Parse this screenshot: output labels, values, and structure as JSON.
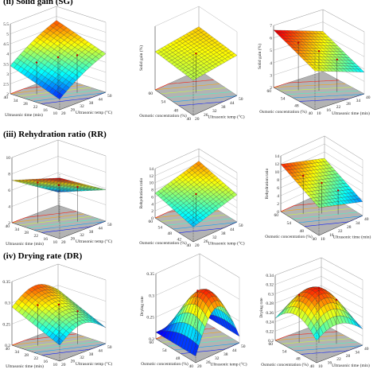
{
  "sections": [
    {
      "id": "sg",
      "title": "(ii) Solid gain (SG)"
    },
    {
      "id": "rr",
      "title": "(iii) Rehydration ratio (RR)"
    },
    {
      "id": "dr",
      "title": "(iv) Drying rate (DR)"
    }
  ],
  "chart_data": [
    {
      "type": "surface",
      "panel": "sg-1",
      "zlabel": "Solid gain (%)",
      "xlabel": "Ultrasonic temp (°C)",
      "ylabel": "Ultrasonic time (min)",
      "zticks": [
        "2",
        "2.5",
        "3",
        "3.5",
        "4",
        "4.5",
        "5",
        "5.5"
      ],
      "xticks": [
        "20",
        "26",
        "32",
        "38",
        "44",
        "50"
      ],
      "yticks": [
        "10",
        "16",
        "22",
        "28",
        "34",
        "40"
      ],
      "zlim": [
        2,
        5.5
      ],
      "grid": "jet",
      "contour_floor": true
    },
    {
      "type": "surface",
      "panel": "sg-2",
      "zlabel": "Solid gain (%)",
      "xlabel": "Ultrasonic temp (°C)",
      "ylabel": "Osmotic concentration (%)",
      "zticks": [],
      "xticks": [
        "20",
        "26",
        "32",
        "38",
        "44",
        "50"
      ],
      "yticks": [
        "40",
        "48",
        "54",
        "60"
      ],
      "zlim": [
        0,
        10
      ],
      "grid": "jet",
      "contour_floor": true
    },
    {
      "type": "surface",
      "panel": "sg-3",
      "zlabel": "Solid gain (%)",
      "xlabel": "Ultrasonic time (min)",
      "ylabel": "Osmotic concentration (%)",
      "zticks": [
        "2",
        "3",
        "4",
        "5",
        "6",
        "7"
      ],
      "xticks": [
        "10",
        "16",
        "22",
        "28",
        "34",
        "40"
      ],
      "yticks": [
        "40",
        "48",
        "54",
        "60"
      ],
      "zlim": [
        2,
        7
      ],
      "grid": "jet",
      "contour_floor": true
    },
    {
      "type": "surface",
      "panel": "rr-1",
      "zlabel": "Rehydration ratio",
      "xlabel": "Ultrasonic temp (°C)",
      "ylabel": "Ultrasonic time (min)",
      "zticks": [
        "2",
        "4",
        "6",
        "8",
        "10"
      ],
      "xticks": [
        "20",
        "26",
        "32",
        "38",
        "44",
        "50"
      ],
      "yticks": [
        "10",
        "16",
        "22",
        "28",
        "34",
        "40"
      ],
      "zlim": [
        2,
        10
      ],
      "grid": "jet",
      "contour_floor": true
    },
    {
      "type": "surface",
      "panel": "rr-2",
      "zlabel": "Rehydration ratio",
      "xlabel": "Ultrasonic temp (°C)",
      "ylabel": "Osmotic concentration (%)",
      "zticks": [
        "0",
        "2",
        "4",
        "6",
        "8",
        "10",
        "12",
        "14"
      ],
      "xticks": [
        "20",
        "26",
        "32",
        "38",
        "44",
        "50"
      ],
      "yticks": [
        "40",
        "42",
        "48",
        "54",
        "60"
      ],
      "zlim": [
        0,
        14
      ],
      "grid": "jet",
      "contour_floor": true
    },
    {
      "type": "surface",
      "panel": "rr-3",
      "zlabel": "Rehydration ratio",
      "xlabel": "Ultrasonic time (min)",
      "ylabel": "Osmotic concentration (%)",
      "zticks": [
        "0",
        "2",
        "4",
        "6",
        "8",
        "10",
        "12",
        "14"
      ],
      "xticks": [
        "10",
        "16",
        "22",
        "28",
        "34",
        "40"
      ],
      "yticks": [
        "40",
        "48",
        "54",
        "60"
      ],
      "zlim": [
        0,
        14
      ],
      "grid": "jet",
      "contour_floor": true
    },
    {
      "type": "surface",
      "panel": "dr-1",
      "zlabel": "Drying rate",
      "xlabel": "Ultrasonic temp (°C)",
      "ylabel": "Ultrasonic time (min)",
      "zticks": [
        "0.2",
        "0.25",
        "0.3",
        "0.35"
      ],
      "xticks": [
        "20",
        "26",
        "32",
        "38",
        "44",
        "50"
      ],
      "yticks": [
        "10",
        "16",
        "22",
        "28",
        "34",
        "40"
      ],
      "zlim": [
        0.2,
        0.35
      ],
      "grid": "jet",
      "contour_floor": true
    },
    {
      "type": "surface",
      "panel": "dr-2",
      "zlabel": "Drying rate",
      "xlabel": "Ultrasonic temp (°C)",
      "ylabel": "Osmotic concentration (%)",
      "zticks": [
        "0.2",
        "0.25",
        "0.3",
        "0.35"
      ],
      "xticks": [
        "20",
        "26",
        "32",
        "38",
        "44",
        "50"
      ],
      "yticks": [
        "40",
        "48",
        "54",
        "60"
      ],
      "zlim": [
        0.2,
        0.35
      ],
      "grid": "jet",
      "contour_floor": true
    },
    {
      "type": "surface",
      "panel": "dr-3",
      "zlabel": "Drying rate",
      "xlabel": "Ultrasonic time (min)",
      "ylabel": "Osmotic concentration (%)",
      "zticks": [
        "0.2",
        "0.22",
        "0.24",
        "0.26",
        "0.28",
        "0.3",
        "0.32",
        "0.34"
      ],
      "xticks": [
        "10",
        "16",
        "22",
        "28",
        "34",
        "40"
      ],
      "yticks": [
        "40",
        "48",
        "54",
        "60"
      ],
      "zlim": [
        0.2,
        0.34
      ],
      "grid": "jet",
      "contour_floor": true
    }
  ]
}
